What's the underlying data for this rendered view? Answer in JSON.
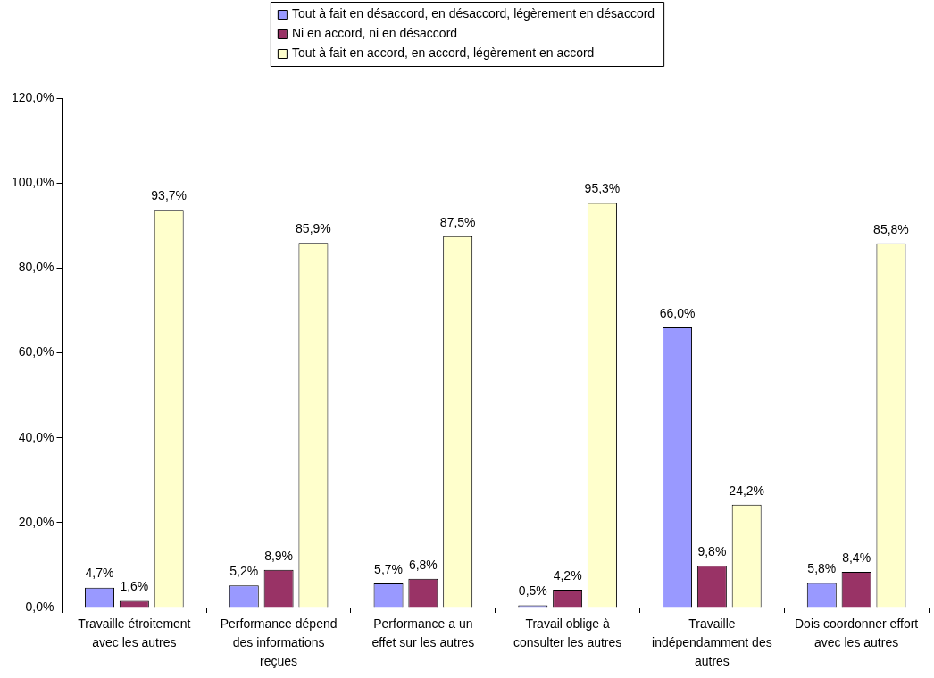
{
  "chart_data": {
    "type": "bar",
    "categories": [
      "Travaille étroitement avec les autres",
      "Performance dépend des informations reçues",
      "Performance a un effet sur les autres",
      "Travail oblige à consulter les autres",
      "Travaille indépendamment des autres",
      "Dois coordonner effort avec les autres"
    ],
    "series": [
      {
        "name": "Tout à fait en désaccord, en désaccord, légèrement en désaccord",
        "color": "#9999ff",
        "values": [
          4.7,
          5.2,
          5.7,
          0.5,
          66.0,
          5.8
        ],
        "value_labels": [
          "4,7%",
          "5,2%",
          "5,7%",
          "0,5%",
          "66,0%",
          "5,8%"
        ]
      },
      {
        "name": "Ni en accord, ni en désaccord",
        "color": "#993366",
        "values": [
          1.6,
          8.9,
          6.8,
          4.2,
          9.8,
          8.4
        ],
        "value_labels": [
          "1,6%",
          "8,9%",
          "6,8%",
          "4,2%",
          "9,8%",
          "8,4%"
        ]
      },
      {
        "name": "Tout à fait en accord, en accord, légèrement en accord",
        "color": "#ffffcc",
        "values": [
          93.7,
          85.9,
          87.5,
          95.3,
          24.2,
          85.8
        ],
        "value_labels": [
          "93,7%",
          "85,9%",
          "87,5%",
          "95,3%",
          "24,2%",
          "85,8%"
        ]
      }
    ],
    "ylim": [
      0,
      120
    ],
    "yticks": [
      {
        "value": 0,
        "label": "0,0%"
      },
      {
        "value": 20,
        "label": "20,0%"
      },
      {
        "value": 40,
        "label": "40,0%"
      },
      {
        "value": 60,
        "label": "60,0%"
      },
      {
        "value": 80,
        "label": "80,0%"
      },
      {
        "value": 100,
        "label": "100,0%"
      },
      {
        "value": 120,
        "label": "120,0%"
      }
    ],
    "grid": false,
    "legend": "top"
  }
}
